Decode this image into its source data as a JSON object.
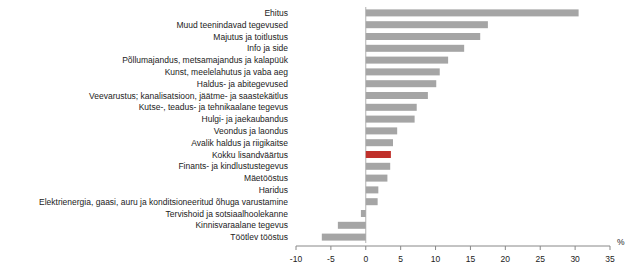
{
  "chart_data": {
    "type": "bar",
    "orientation": "horizontal",
    "categories": [
      "Ehitus",
      "Muud teenindavad tegevused",
      "Majutus ja toitlustus",
      "Info ja side",
      "Põllumajandus, metsamajandus ja kalapüük",
      "Kunst, meelelahutus ja vaba aeg",
      "Haldus- ja abitegevused",
      "Veevarustus; kanalisatsioon, jäätme- ja saastekäitlus",
      "Kutse-, teadus- ja tehnikaalane tegevus",
      "Hulgi- ja jaekaubandus",
      "Veondus ja laondus",
      "Avalik haldus ja riigikaitse",
      "Kokku lisandväärtus",
      "Finants- ja kindlustustegevus",
      "Mäetööstus",
      "Haridus",
      "Elektrienergia, gaasi, auru ja konditsioneeritud õhuga varustamine",
      "Tervishoid ja sotsiaalhoolekanne",
      "Kinnisvaraalane tegevus",
      "Töötlev tööstus"
    ],
    "values": [
      30.5,
      17.5,
      16.4,
      14.1,
      11.8,
      10.6,
      10.1,
      8.9,
      7.3,
      7.0,
      4.5,
      3.9,
      3.6,
      3.5,
      3.1,
      1.8,
      1.7,
      -0.7,
      -4.0,
      -6.3
    ],
    "colors": [
      "#a5a5a5",
      "#a5a5a5",
      "#a5a5a5",
      "#a5a5a5",
      "#a5a5a5",
      "#a5a5a5",
      "#a5a5a5",
      "#a5a5a5",
      "#a5a5a5",
      "#a5a5a5",
      "#a5a5a5",
      "#a5a5a5",
      "#c0302b",
      "#a5a5a5",
      "#a5a5a5",
      "#a5a5a5",
      "#a5a5a5",
      "#a5a5a5",
      "#a5a5a5",
      "#a5a5a5"
    ],
    "x_label": "%",
    "xlim": [
      -10,
      35
    ],
    "xticks": [
      -10,
      -5,
      0,
      5,
      10,
      15,
      20,
      25,
      30,
      35
    ],
    "grid": false
  }
}
